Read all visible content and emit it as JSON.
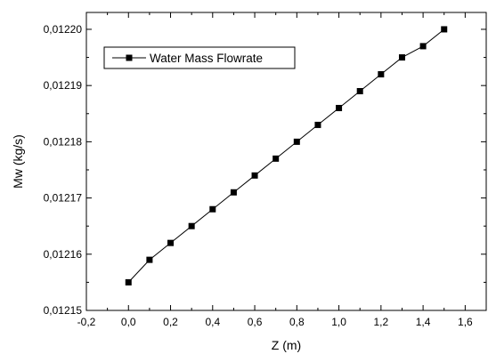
{
  "chart_data": {
    "type": "line",
    "title": "",
    "xlabel": "Z (m)",
    "ylabel": "Mw (kg/s)",
    "xlim": [
      -0.2,
      1.7
    ],
    "ylim": [
      0.01215,
      0.012203
    ],
    "x_ticks": [
      -0.2,
      0.0,
      0.2,
      0.4,
      0.6,
      0.8,
      1.0,
      1.2,
      1.4,
      1.6
    ],
    "x_tick_labels": [
      "-0,2",
      "0,0",
      "0,2",
      "0,4",
      "0,6",
      "0,8",
      "1,0",
      "1,2",
      "1,4",
      "1,6"
    ],
    "y_ticks": [
      0.01215,
      0.01216,
      0.01217,
      0.01218,
      0.01219,
      0.0122
    ],
    "y_tick_labels": [
      "0,01215",
      "0,01216",
      "0,01217",
      "0,01218",
      "0,01219",
      "0,01220"
    ],
    "grid": false,
    "legend_position": "top-left",
    "series": [
      {
        "name": "Water Mass Flowrate",
        "marker": "square",
        "color": "#000000",
        "x": [
          0.0,
          0.1,
          0.2,
          0.3,
          0.4,
          0.5,
          0.6,
          0.7,
          0.8,
          0.9,
          1.0,
          1.1,
          1.2,
          1.3,
          1.4,
          1.5
        ],
        "y": [
          0.012155,
          0.012159,
          0.012162,
          0.012165,
          0.012168,
          0.012171,
          0.012174,
          0.012177,
          0.01218,
          0.012183,
          0.012186,
          0.012189,
          0.012192,
          0.012195,
          0.012197,
          0.0122
        ]
      }
    ]
  }
}
